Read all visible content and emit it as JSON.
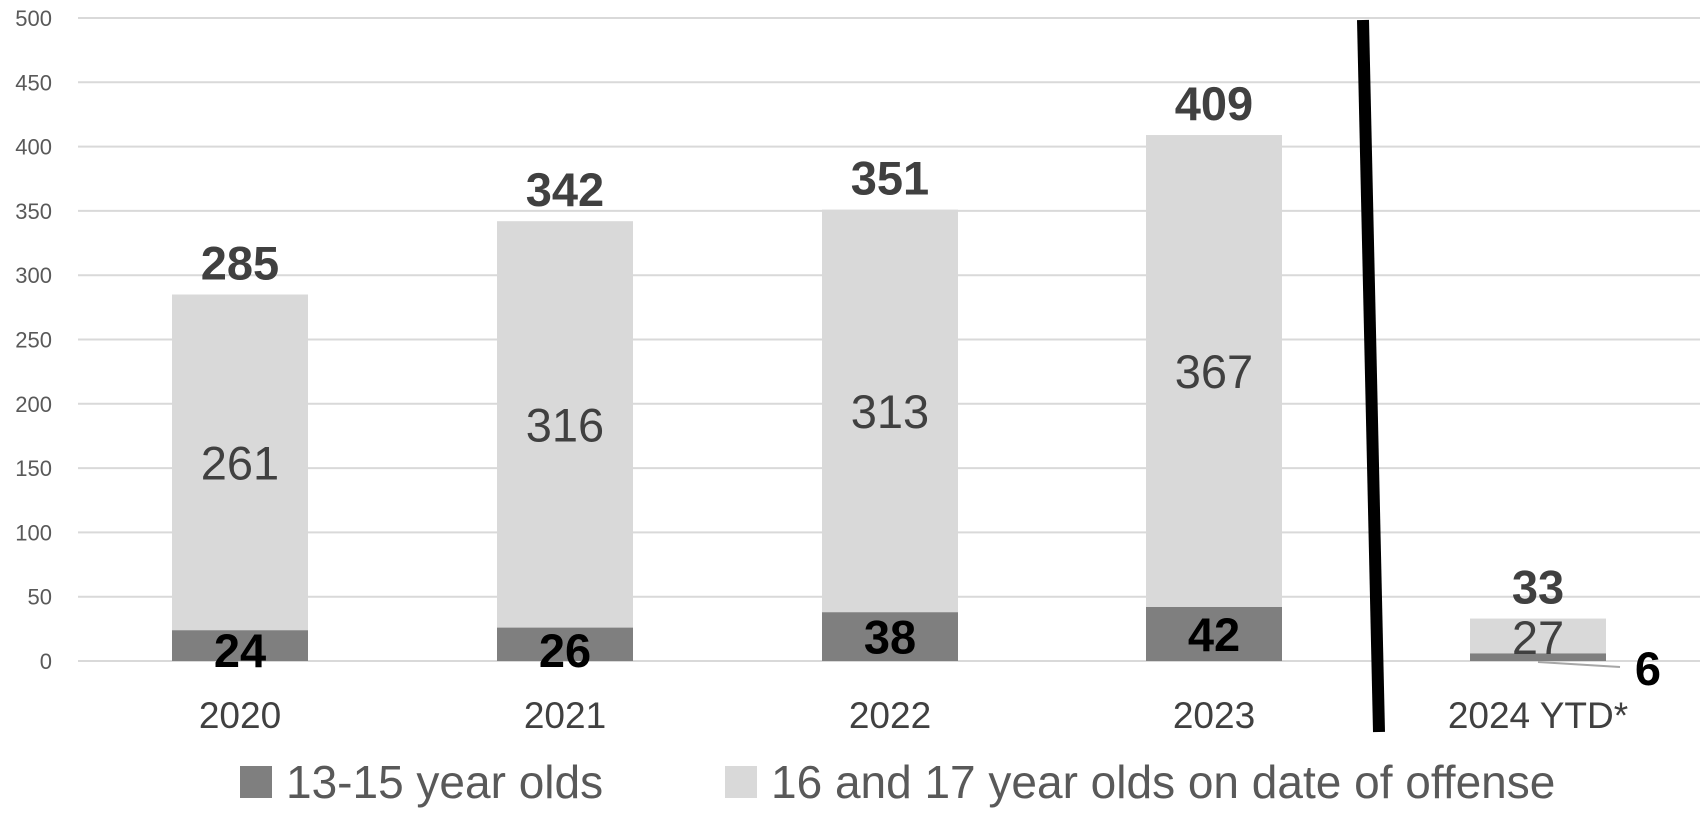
{
  "chart_data": {
    "type": "bar",
    "stacked": true,
    "categories": [
      "2020",
      "2021",
      "2022",
      "2023",
      "2024 YTD*"
    ],
    "series": [
      {
        "name": "13-15 year olds",
        "values": [
          24,
          26,
          38,
          42,
          6
        ],
        "color": "#7f7f7f"
      },
      {
        "name": "16 and 17 year olds on date of offense",
        "values": [
          261,
          316,
          313,
          367,
          27
        ],
        "color": "#d9d9d9"
      }
    ],
    "totals": [
      285,
      342,
      351,
      409,
      33
    ],
    "ylim": [
      0,
      500
    ],
    "yticks": [
      0,
      50,
      100,
      150,
      200,
      250,
      300,
      350,
      400,
      450,
      500
    ],
    "grid": true,
    "legend": "bottom",
    "title": "",
    "xlabel": "",
    "ylabel": "",
    "separator_line": "between 2023 and 2024 YTD*",
    "colors": {
      "gridline": "#d9d9d9",
      "separator": "#000000"
    }
  },
  "legend": {
    "item1": {
      "label": "13-15 year olds",
      "color": "#7f7f7f"
    },
    "item2": {
      "label": "16 and 17 year olds on date of offense",
      "color": "#d9d9d9"
    }
  }
}
